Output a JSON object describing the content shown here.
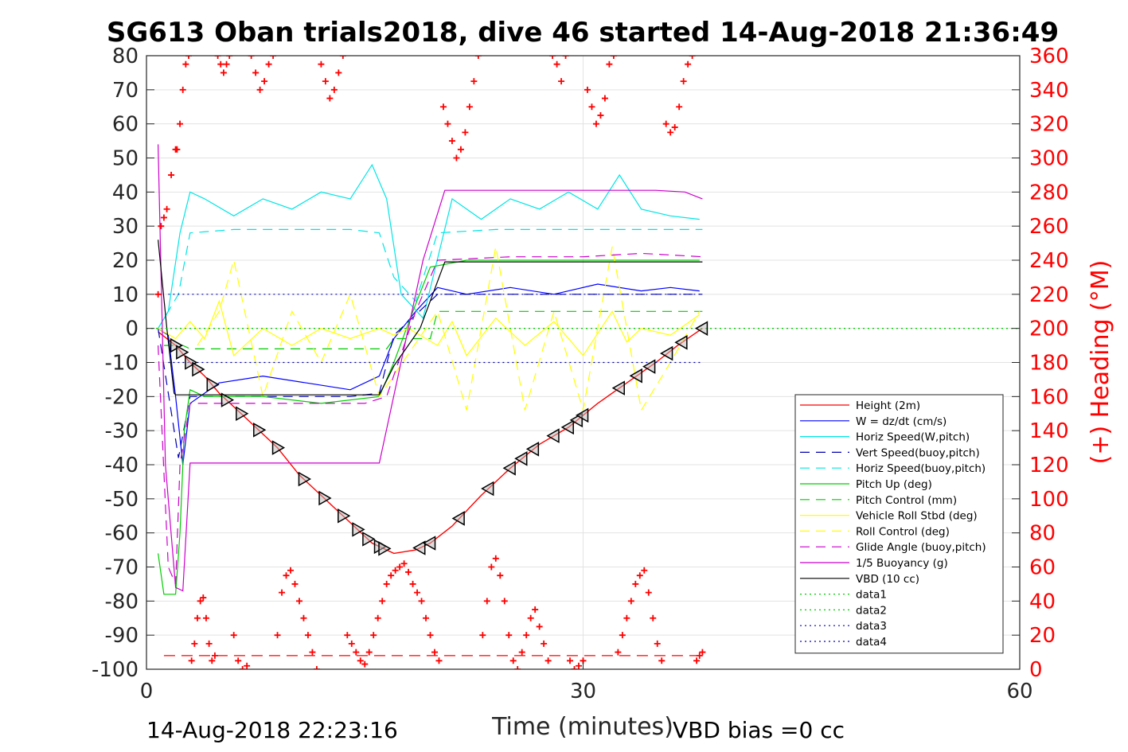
{
  "title": "SG613 Oban trials2018, dive 46 started 14-Aug-2018 21:36:49",
  "footer": {
    "left": "14-Aug-2018 22:23:16",
    "right": "VBD bias =0 cc"
  },
  "colors": {
    "height": "#ff0000",
    "w": "#0000ff",
    "horiz_speed": "#00e5e5",
    "vert_speed": "#0000b3",
    "horiz_speed_buoy": "#00e5e5",
    "pitch_up": "#00cc00",
    "pitch_control": "#00cc00",
    "roll": "#ffff00",
    "roll_control": "#ffff00",
    "glide": "#cc00cc",
    "buoyancy": "#cc00cc",
    "vbd": "#000000",
    "heading": "#ff0000"
  },
  "chart_data": {
    "type": "line",
    "title": "SG613 Oban trials2018, dive 46 started 14-Aug-2018 21:36:49",
    "xlabel": "Time (minutes)",
    "ylabel": "",
    "ylabel_right": "(+) Heading (°M)",
    "xlim": [
      0,
      60
    ],
    "ylim": [
      -100,
      80
    ],
    "ylim_right": [
      0,
      360
    ],
    "xticks": [
      "0",
      "30",
      "60"
    ],
    "yticks": [
      "80",
      "70",
      "60",
      "50",
      "40",
      "30",
      "20",
      "10",
      "0",
      "-10",
      "-20",
      "-30",
      "-40",
      "-50",
      "-60",
      "-70",
      "-80",
      "-90",
      "-100"
    ],
    "yticks_right": [
      "360",
      "340",
      "320",
      "300",
      "280",
      "260",
      "240",
      "220",
      "200",
      "180",
      "160",
      "140",
      "120",
      "100",
      "80",
      "60",
      "40",
      "20",
      "0"
    ],
    "grid": true,
    "legend_position": "lower-right",
    "legend": [
      {
        "label": "Height (2m)",
        "style": "solid",
        "color": "#ff0000"
      },
      {
        "label": "W = dz/dt (cm/s)",
        "style": "solid",
        "color": "#0000ff"
      },
      {
        "label": "Horiz Speed(W,pitch)",
        "style": "solid",
        "color": "#00e5e5"
      },
      {
        "label": "Vert Speed(buoy,pitch)",
        "style": "dashed",
        "color": "#0000b3"
      },
      {
        "label": "Horiz Speed(buoy,pitch)",
        "style": "dashed",
        "color": "#00e5e5"
      },
      {
        "label": "Pitch Up (deg)",
        "style": "solid",
        "color": "#00cc00"
      },
      {
        "label": "Pitch Control (mm)",
        "style": "dashed",
        "color": "#00cc00"
      },
      {
        "label": "Vehicle Roll Stbd (deg)",
        "style": "solid",
        "color": "#ffff00"
      },
      {
        "label": "Roll Control (deg)",
        "style": "dashed",
        "color": "#ffff00"
      },
      {
        "label": "Glide Angle (buoy,pitch)",
        "style": "dashed",
        "color": "#cc00cc"
      },
      {
        "label": "1/5 Buoyancy (g)",
        "style": "solid",
        "color": "#cc00cc"
      },
      {
        "label": "VBD (10 cc)",
        "style": "solid",
        "color": "#000000"
      },
      {
        "label": "data1",
        "style": "dotted",
        "color": "#00cc00"
      },
      {
        "label": "data2",
        "style": "dotted",
        "color": "#00cc00"
      },
      {
        "label": "data3",
        "style": "dotted",
        "color": "#0000b3"
      },
      {
        "label": "data4",
        "style": "dotted",
        "color": "#0000b3"
      }
    ],
    "series": [
      {
        "name": "Height (2m)",
        "x": [
          0.8,
          2,
          3,
          4,
          5,
          7,
          9,
          10.5,
          12,
          14,
          15.5,
          17,
          18.5,
          19.5,
          21,
          23,
          25,
          27,
          29,
          31,
          33,
          35,
          36.5,
          38.2
        ],
        "y": [
          -1,
          -5,
          -10,
          -14,
          -19,
          -27,
          -35,
          -43,
          -49,
          -57,
          -63,
          -66,
          -65,
          -63,
          -58,
          -49,
          -41,
          -34,
          -29,
          -22,
          -16,
          -10,
          -5,
          0
        ]
      },
      {
        "name": "W = dz/dt (cm/s)",
        "x": [
          0.8,
          1.5,
          2,
          2.5,
          3,
          5,
          8,
          11,
          14,
          16,
          17,
          18.5,
          20,
          22,
          25,
          28,
          31,
          34,
          36,
          38
        ],
        "y": [
          0,
          -2,
          -20,
          -40,
          -22,
          -16,
          -14,
          -16,
          -18,
          -14,
          -3,
          5,
          12,
          10,
          12,
          10,
          13,
          11,
          12,
          11
        ]
      },
      {
        "name": "Horiz Speed(W,pitch)",
        "x": [
          0.8,
          1.5,
          2.3,
          3,
          4,
          6,
          8,
          10,
          12,
          14,
          15.5,
          16.5,
          17.5,
          19,
          21,
          23,
          25,
          27,
          29,
          31,
          32.5,
          34,
          36,
          38
        ],
        "y": [
          0,
          5,
          28,
          40,
          38,
          33,
          38,
          35,
          40,
          38,
          48,
          38,
          10,
          3,
          38,
          32,
          38,
          35,
          40,
          35,
          45,
          35,
          33,
          32
        ]
      },
      {
        "name": "Vert Speed(buoy,pitch)",
        "x": [
          0.8,
          2.2,
          3,
          6,
          10,
          14,
          16,
          17,
          18,
          20,
          24,
          28,
          32,
          36,
          38.2
        ],
        "y": [
          0,
          -38,
          -20,
          -20,
          -20,
          -20,
          -19,
          -2,
          2,
          10,
          10,
          10,
          10,
          10,
          10
        ]
      },
      {
        "name": "Horiz Speed(buoy,pitch)",
        "x": [
          0.8,
          2.2,
          3,
          6,
          10,
          14,
          16,
          17,
          18.5,
          20,
          24,
          28,
          32,
          36,
          38.2
        ],
        "y": [
          0,
          10,
          28,
          29,
          29,
          29,
          28,
          15,
          8,
          28,
          29,
          29,
          29,
          29,
          29
        ]
      },
      {
        "name": "Pitch Up (deg)",
        "x": [
          0.8,
          1.2,
          2,
          2.3,
          2.6,
          3,
          4,
          8,
          12,
          16,
          17,
          18.3,
          19.5,
          22,
          26,
          30,
          34,
          38
        ],
        "y": [
          -66,
          -78,
          -78,
          -60,
          -30,
          -18,
          -20,
          -20,
          -22,
          -20,
          -10,
          5,
          18,
          20,
          20,
          20,
          20,
          20
        ]
      },
      {
        "name": "Pitch Control (mm)",
        "x": [
          1.2,
          2.5,
          3,
          16.5,
          17,
          19.5,
          20,
          38.2
        ],
        "y": [
          -5,
          -5,
          -6,
          -6,
          -3,
          -3,
          5,
          5
        ]
      },
      {
        "name": "Vehicle Roll Stbd (deg)",
        "x": [
          0.8,
          2,
          3,
          4,
          5,
          6,
          8,
          10,
          12,
          14,
          16,
          17,
          18,
          20,
          21,
          22,
          24,
          26,
          28,
          30,
          32,
          33,
          34,
          36,
          38
        ],
        "y": [
          0,
          -3,
          2,
          -3,
          8,
          -8,
          0,
          -5,
          0,
          -3,
          0,
          -2,
          0,
          -5,
          2,
          -8,
          3,
          -5,
          2,
          -8,
          5,
          -4,
          0,
          -2,
          4
        ]
      },
      {
        "name": "Roll Control (deg)",
        "x": [
          3.5,
          5,
          6,
          8,
          10,
          12,
          14,
          16,
          20,
          22,
          24,
          26,
          28,
          30,
          32,
          34,
          36,
          38
        ],
        "y": [
          -5,
          5,
          20,
          -20,
          5,
          -10,
          10,
          -20,
          5,
          -24,
          24,
          -24,
          5,
          -24,
          24,
          -24,
          -10,
          5
        ]
      },
      {
        "name": "Glide Angle (buoy,pitch)",
        "x": [
          0.8,
          1.5,
          2,
          2.3,
          3,
          5,
          10,
          15,
          16.5,
          18.5,
          20,
          25,
          30,
          34,
          38.2
        ],
        "y": [
          -5,
          -70,
          -75,
          -40,
          -22,
          -22,
          -22,
          -22,
          -20,
          5,
          20,
          21,
          21,
          22,
          21
        ]
      },
      {
        "name": "1/5 Buoyancy (g)",
        "x": [
          0.8,
          1.3,
          2,
          2.5,
          3,
          6,
          10,
          14,
          16,
          19,
          20.5,
          25,
          30,
          35,
          37,
          38.2
        ],
        "y": [
          54,
          -40,
          -76,
          -77,
          -39.5,
          -39.5,
          -39.5,
          -39.5,
          -39.5,
          20,
          40.5,
          40.5,
          40.5,
          40.5,
          40,
          38
        ]
      },
      {
        "name": "VBD (10 cc)",
        "x": [
          0.8,
          1.4,
          1.9,
          2,
          16,
          17,
          18.8,
          20.5,
          38.2
        ],
        "y": [
          26,
          0,
          -19,
          -19.5,
          -19.5,
          -11,
          0,
          19.5,
          19.5
        ]
      },
      {
        "name": "data1",
        "x": [
          0,
          60
        ],
        "y": [
          0,
          0
        ]
      },
      {
        "name": "data2",
        "x": [
          0,
          60
        ],
        "y": [
          0,
          0
        ]
      },
      {
        "name": "data3",
        "x": [
          1.5,
          38.2
        ],
        "y": [
          10,
          10
        ]
      },
      {
        "name": "data4",
        "x": [
          1.5,
          38.2
        ],
        "y": [
          -10,
          -10
        ]
      }
    ],
    "reference_line": {
      "heading_value": 8,
      "style": "dashed",
      "color": "#ff0000"
    },
    "height_markers_x": [
      2,
      2.4,
      3,
      3.5,
      4.5,
      5.5,
      6.5,
      7.7,
      9,
      10.8,
      12.2,
      13.5,
      14.5,
      15.2,
      16,
      16.3,
      18.8,
      19.5,
      21.5,
      23.5,
      25,
      25.8,
      26.6,
      28,
      29,
      29.6,
      30,
      32.5,
      33.7,
      34.6,
      35.8,
      36.8,
      38.2
    ],
    "heading": {
      "x": [
        0.8,
        1,
        1.2,
        1.4,
        1.7,
        2,
        2.1,
        2.3,
        2.5,
        2.7,
        2.9,
        3.1,
        3.3,
        3.5,
        3.7,
        3.9,
        4.1,
        4.3,
        4.5,
        4.7,
        4.9,
        5.1,
        5.3,
        5.5,
        5.7,
        6,
        6.3,
        6.6,
        6.9,
        7.2,
        7.5,
        7.8,
        8.1,
        8.4,
        8.7,
        9,
        9.3,
        9.6,
        9.9,
        10.2,
        10.5,
        10.8,
        11.1,
        11.4,
        11.7,
        12,
        12.3,
        12.6,
        12.9,
        13.2,
        13.5,
        13.8,
        14.1,
        14.4,
        14.7,
        15,
        15.3,
        15.6,
        15.9,
        16.2,
        16.5,
        16.8,
        17.1,
        17.4,
        17.7,
        18,
        18.3,
        18.6,
        18.9,
        19.2,
        19.5,
        19.8,
        20.1,
        20.4,
        20.7,
        21,
        21.3,
        21.6,
        21.9,
        22.2,
        22.5,
        22.8,
        23.1,
        23.4,
        23.7,
        24,
        24.3,
        24.6,
        24.9,
        25.2,
        25.5,
        25.8,
        26.1,
        26.4,
        26.7,
        27,
        27.3,
        27.6,
        27.9,
        28.2,
        28.5,
        28.8,
        29.1,
        29.4,
        29.7,
        30,
        30.3,
        30.6,
        30.9,
        31.2,
        31.5,
        31.8,
        32.1,
        32.4,
        32.7,
        33,
        33.3,
        33.6,
        33.9,
        34.2,
        34.5,
        34.8,
        35.1,
        35.4,
        35.7,
        36,
        36.3,
        36.6,
        36.9,
        37.2,
        37.5,
        37.8,
        38,
        38.2
      ],
      "y": [
        220,
        260,
        265,
        270,
        290,
        305,
        305,
        320,
        340,
        355,
        360,
        5,
        15,
        30,
        40,
        42,
        30,
        15,
        5,
        8,
        360,
        355,
        350,
        355,
        360,
        20,
        5,
        0,
        2,
        360,
        350,
        340,
        345,
        355,
        360,
        20,
        45,
        55,
        58,
        50,
        40,
        30,
        20,
        10,
        0,
        355,
        345,
        335,
        340,
        350,
        360,
        20,
        15,
        10,
        5,
        3,
        10,
        20,
        30,
        40,
        50,
        55,
        58,
        60,
        62,
        57,
        50,
        45,
        40,
        30,
        20,
        10,
        5,
        330,
        320,
        310,
        300,
        305,
        315,
        330,
        345,
        360,
        20,
        40,
        60,
        65,
        55,
        40,
        20,
        5,
        0,
        10,
        20,
        30,
        35,
        25,
        15,
        5,
        360,
        355,
        345,
        360,
        5,
        0,
        2,
        5,
        340,
        330,
        320,
        325,
        335,
        355,
        360,
        10,
        20,
        30,
        40,
        50,
        55,
        58,
        45,
        30,
        15,
        5,
        320,
        315,
        318,
        330,
        345,
        355,
        360,
        5,
        8,
        10
      ]
    }
  }
}
